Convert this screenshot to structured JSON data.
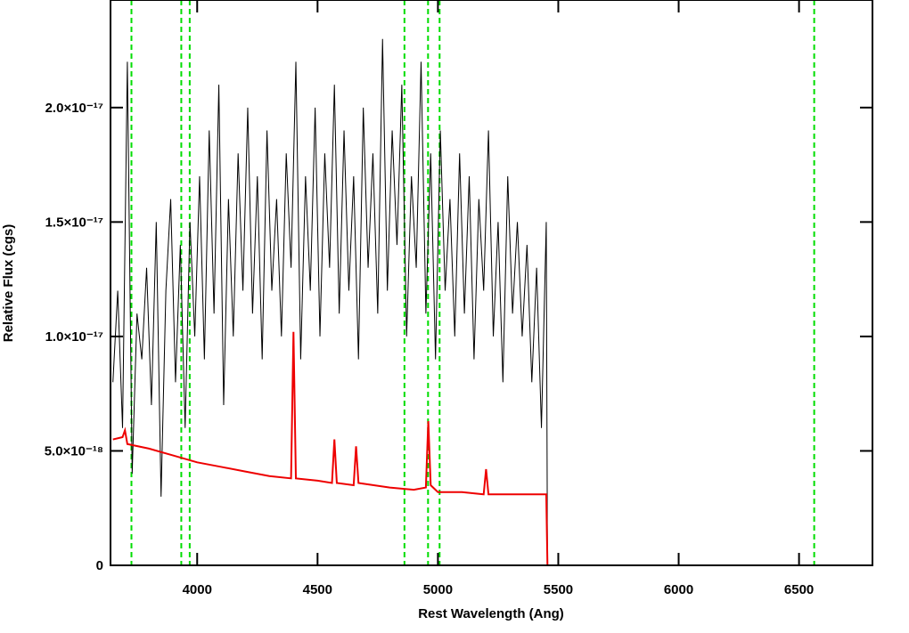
{
  "chart_data": {
    "type": "line",
    "xlabel": "Rest Wavelength (Ang)",
    "ylabel": "Relative Flux (cgs)",
    "xlim": [
      3640,
      6805
    ],
    "ylim": [
      0,
      2.47e-17
    ],
    "xticks": [
      4000,
      4500,
      5000,
      5500,
      6000,
      6500
    ],
    "yticks": [
      0,
      {
        "value": 5e-18,
        "label": "5.0×10⁻¹⁸"
      },
      {
        "value": 1e-17,
        "label": "1.0×10⁻¹⁷"
      },
      {
        "value": 1.5e-17,
        "label": "1.5×10⁻¹⁷"
      },
      {
        "value": 2e-17,
        "label": "2.0×10⁻¹⁷"
      }
    ],
    "series": [
      {
        "color": "#000000",
        "x": [
          3650,
          3670,
          3690,
          3710,
          3730,
          3750,
          3770,
          3790,
          3810,
          3830,
          3850,
          3870,
          3890,
          3910,
          3930,
          3950,
          3970,
          3990,
          4010,
          4030,
          4050,
          4070,
          4090,
          4110,
          4130,
          4150,
          4170,
          4190,
          4210,
          4230,
          4250,
          4270,
          4290,
          4310,
          4330,
          4350,
          4370,
          4390,
          4410,
          4430,
          4450,
          4470,
          4490,
          4510,
          4530,
          4550,
          4570,
          4590,
          4610,
          4630,
          4650,
          4670,
          4690,
          4710,
          4730,
          4750,
          4770,
          4790,
          4810,
          4830,
          4850,
          4870,
          4890,
          4910,
          4930,
          4950,
          4970,
          4990,
          5010,
          5030,
          5050,
          5070,
          5090,
          5110,
          5130,
          5150,
          5170,
          5190,
          5210,
          5230,
          5250,
          5270,
          5290,
          5310,
          5330,
          5350,
          5370,
          5390,
          5410,
          5430,
          5450,
          5455
        ],
        "values": [
          8e-18,
          1.2e-17,
          6e-18,
          2.2e-17,
          4e-18,
          1.1e-17,
          9e-18,
          1.3e-17,
          7e-18,
          1.5e-17,
          3e-18,
          1.2e-17,
          1.6e-17,
          8e-18,
          1.4e-17,
          6e-18,
          1.5e-17,
          1e-17,
          1.7e-17,
          9e-18,
          1.9e-17,
          1.1e-17,
          2.1e-17,
          7e-18,
          1.6e-17,
          1e-17,
          1.8e-17,
          1.2e-17,
          2e-17,
          1.1e-17,
          1.7e-17,
          9e-18,
          1.9e-17,
          1.2e-17,
          1.6e-17,
          1e-17,
          1.8e-17,
          1.3e-17,
          2.2e-17,
          9e-18,
          1.7e-17,
          1.2e-17,
          2e-17,
          1e-17,
          1.8e-17,
          1.3e-17,
          2.1e-17,
          1.1e-17,
          1.9e-17,
          1.2e-17,
          1.7e-17,
          9e-18,
          2e-17,
          1.3e-17,
          1.8e-17,
          1.1e-17,
          2.3e-17,
          1.2e-17,
          1.9e-17,
          1.4e-17,
          2.1e-17,
          1e-17,
          1.7e-17,
          1.3e-17,
          2.2e-17,
          1.1e-17,
          1.8e-17,
          9e-18,
          1.9e-17,
          1.2e-17,
          1.6e-17,
          1e-17,
          1.8e-17,
          1.1e-17,
          1.7e-17,
          9e-18,
          1.6e-17,
          1.2e-17,
          1.9e-17,
          1e-17,
          1.5e-17,
          8e-18,
          1.7e-17,
          1.1e-17,
          1.5e-17,
          1e-17,
          1.4e-17,
          8e-18,
          1.3e-17,
          6e-18,
          1.5e-17,
          0
        ]
      },
      {
        "color": "#ee0000",
        "x": [
          3650,
          3690,
          3700,
          3710,
          3800,
          3900,
          4000,
          4100,
          4200,
          4300,
          4390,
          4400,
          4410,
          4500,
          4560,
          4570,
          4580,
          4650,
          4660,
          4670,
          4800,
          4900,
          4950,
          4960,
          4970,
          5000,
          5100,
          5190,
          5200,
          5210,
          5300,
          5440,
          5450,
          5455,
          6805
        ],
        "values": [
          5.5e-18,
          5.6e-18,
          5.9e-18,
          5.3e-18,
          5.1e-18,
          4.8e-18,
          4.5e-18,
          4.3e-18,
          4.1e-18,
          3.9e-18,
          3.8e-18,
          1.02e-17,
          3.8e-18,
          3.7e-18,
          3.6e-18,
          5.5e-18,
          3.6e-18,
          3.5e-18,
          5.2e-18,
          3.6e-18,
          3.4e-18,
          3.3e-18,
          3.4e-18,
          6.3e-18,
          3.5e-18,
          3.2e-18,
          3.2e-18,
          3.1e-18,
          4.2e-18,
          3.1e-18,
          3.1e-18,
          3.1e-18,
          3.1e-18,
          0,
          0
        ]
      }
    ],
    "vlines": {
      "color": "#00dd00",
      "x": [
        3727,
        3934,
        3969,
        4861,
        4959,
        5007,
        6563
      ]
    }
  }
}
